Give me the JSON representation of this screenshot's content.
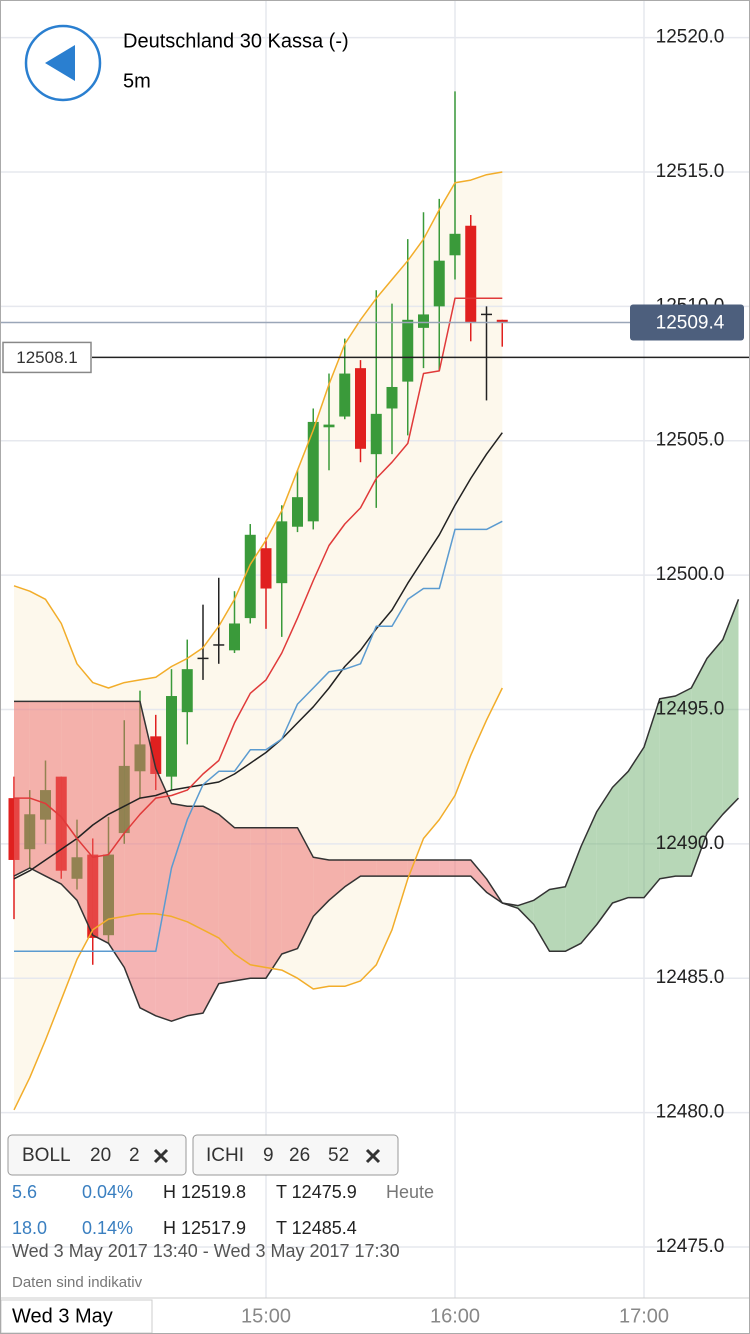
{
  "chart_data": {
    "type": "candlestick",
    "title": "Deutschland 30 Kassa (-)",
    "subtitle": "5m",
    "x": [
      "13:40",
      "13:45",
      "13:50",
      "13:55",
      "14:00",
      "14:05",
      "14:10",
      "14:15",
      "14:20",
      "14:25",
      "14:30",
      "14:35",
      "14:40",
      "14:45",
      "14:50",
      "14:55",
      "15:00",
      "15:05",
      "15:10",
      "15:15",
      "15:20",
      "15:25",
      "15:30",
      "15:35",
      "15:40",
      "15:45",
      "15:50",
      "15:55",
      "16:00",
      "16:05",
      "16:10",
      "16:15",
      "16:20",
      "16:25",
      "16:30",
      "16:35",
      "16:40",
      "16:45",
      "16:50",
      "16:55",
      "17:00",
      "17:05",
      "17:10",
      "17:15",
      "17:20",
      "17:25",
      "17:30"
    ],
    "open": [
      12491.7,
      12489.8,
      12490.9,
      12492.5,
      12488.7,
      12489.6,
      12486.6,
      12490.4,
      12492.7,
      12494.0,
      12492.5,
      12494.9,
      12496.9,
      12497.4,
      12497.2,
      12498.4,
      12501.0,
      12499.7,
      12501.8,
      12502.0,
      12505.5,
      12505.9,
      12507.7,
      12504.5,
      12506.2,
      12507.2,
      12509.2,
      12510.0,
      12511.9,
      12513.0,
      12509.7,
      12509.5,
      null,
      null,
      null,
      null,
      null,
      null,
      null,
      null,
      null,
      null,
      null,
      null,
      null,
      null,
      null
    ],
    "high": [
      12492.5,
      12492.0,
      12493.1,
      12492.5,
      12490.9,
      12490.2,
      12491.0,
      12494.6,
      12495.7,
      12494.8,
      12496.5,
      12497.6,
      12498.9,
      12499.9,
      12499.4,
      12501.9,
      12501.4,
      12502.6,
      12503.9,
      12506.2,
      12507.5,
      12508.8,
      12508.0,
      12510.6,
      12510.1,
      12512.5,
      12513.5,
      12514.0,
      12518.0,
      12513.4,
      12510.0,
      12509.5,
      null,
      null,
      null,
      null,
      null,
      null,
      null,
      null,
      null,
      null,
      null,
      null,
      null,
      null,
      null
    ],
    "low": [
      12487.2,
      12489.1,
      12490.0,
      12488.7,
      12488.3,
      12485.5,
      12486.3,
      12490.0,
      12491.7,
      12492.0,
      12492.0,
      12493.7,
      12496.1,
      12496.7,
      12497.1,
      12498.2,
      12498.0,
      12497.7,
      12501.6,
      12501.7,
      12503.9,
      12505.8,
      12504.2,
      12502.5,
      12504.5,
      12505.2,
      12507.7,
      12507.6,
      12511.0,
      12508.7,
      12506.5,
      12508.5,
      null,
      null,
      null,
      null,
      null,
      null,
      null,
      null,
      null,
      null,
      null,
      null,
      null,
      null,
      null
    ],
    "close": [
      12489.4,
      12491.1,
      12492.0,
      12489.0,
      12489.5,
      12486.5,
      12489.6,
      12492.9,
      12493.7,
      12492.6,
      12495.5,
      12496.5,
      12496.9,
      12497.4,
      12498.2,
      12501.5,
      12499.5,
      12502.0,
      12502.9,
      12505.7,
      12505.6,
      12507.5,
      12504.7,
      12506.0,
      12507.0,
      12509.5,
      12509.7,
      12511.7,
      12512.7,
      12509.4,
      12509.7,
      12509.4,
      null,
      null,
      null,
      null,
      null,
      null,
      null,
      null,
      null,
      null,
      null,
      null,
      null,
      null,
      null
    ],
    "up_color": "#3a9a3a",
    "down_color": "#e0201f",
    "flat_color": "#222222",
    "bands": {
      "color": "#f2ad2a",
      "fill": "#fdf8ec",
      "upper": [
        12499.6,
        12499.4,
        12499.1,
        12498.2,
        12496.7,
        12496.0,
        12495.8,
        12496.0,
        12496.1,
        12496.2,
        12496.6,
        12496.9,
        12497.3,
        12498.1,
        12499.1,
        12500.4,
        12501.3,
        12502.4,
        12503.9,
        12505.4,
        12507.1,
        12508.6,
        12509.5,
        12510.3,
        12511.0,
        12511.7,
        12512.5,
        12513.6,
        12514.6,
        12514.7,
        12514.9,
        12515.0,
        null,
        null,
        null,
        null,
        null,
        null,
        null,
        null,
        null,
        null,
        null,
        null,
        null,
        null,
        null
      ],
      "lower": [
        12480.1,
        12481.3,
        12482.7,
        12484.2,
        12485.7,
        12486.8,
        12487.2,
        12487.3,
        12487.4,
        12487.4,
        12487.3,
        12487.1,
        12486.8,
        12486.5,
        12485.9,
        12485.5,
        12485.4,
        12485.3,
        12485.0,
        12484.6,
        12484.7,
        12484.7,
        12484.9,
        12485.5,
        12486.8,
        12488.7,
        12490.2,
        12490.9,
        12491.8,
        12493.3,
        12494.6,
        12495.8,
        null,
        null,
        null,
        null,
        null,
        null,
        null,
        null,
        null,
        null,
        null,
        null,
        null,
        null,
        null
      ]
    },
    "lines": [
      {
        "color": "#222222",
        "values": [
          12488.7,
          12489.0,
          12489.4,
          12489.8,
          12490.2,
          12490.7,
          12491.1,
          12491.4,
          12491.7,
          12491.8,
          12492.0,
          12492.1,
          12492.2,
          12492.3,
          12492.6,
          12493.0,
          12493.4,
          12493.9,
          12494.5,
          12495.1,
          12495.8,
          12496.6,
          12497.2,
          12498.0,
          12498.7,
          12499.7,
          12500.6,
          12501.5,
          12502.6,
          12503.6,
          12504.5,
          12505.3,
          null,
          null,
          null,
          null,
          null,
          null,
          null,
          null,
          null,
          null,
          null,
          null,
          null,
          null,
          null
        ]
      },
      {
        "color": "#e03a3a",
        "values": [
          12491.7,
          12491.7,
          12491.5,
          12491.0,
          12490.2,
          12489.5,
          12489.6,
          12490.4,
          12491.1,
          12491.7,
          12491.8,
          12492.0,
          12492.6,
          12493.1,
          12494.5,
          12495.6,
          12496.1,
          12497.1,
          12498.4,
          12499.8,
          12501.1,
          12501.9,
          12502.5,
          12503.6,
          12504.2,
          12504.9,
          12507.5,
          12507.6,
          12510.3,
          12510.3,
          12510.3,
          12510.3,
          null,
          null,
          null,
          null,
          null,
          null,
          null,
          null,
          null,
          null,
          null,
          null,
          null,
          null,
          null
        ]
      },
      {
        "color": "#5b9bd0",
        "values": [
          12486.0,
          12486.0,
          12486.0,
          12486.0,
          12486.0,
          12486.0,
          12486.0,
          12486.0,
          12486.0,
          12486.0,
          12489.1,
          12490.9,
          12492.2,
          12492.7,
          12492.7,
          12493.5,
          12493.5,
          12493.9,
          12495.2,
          12495.8,
          12496.4,
          12496.5,
          12496.7,
          12498.1,
          12498.1,
          12499.1,
          12499.5,
          12499.5,
          12501.7,
          12501.7,
          12501.7,
          12502.0,
          null,
          null,
          null,
          null,
          null,
          null,
          null,
          null,
          null,
          null,
          null,
          null,
          null,
          null,
          null
        ]
      }
    ],
    "cloud": {
      "up_color": "#6fb06f",
      "down_color": "#ec6a6a",
      "line_color": "#333333",
      "spanA": [
        12488.8,
        12489.1,
        12488.8,
        12488.5,
        12487.9,
        12486.6,
        12486.3,
        12485.4,
        12483.9,
        12483.6,
        12483.4,
        12483.6,
        12483.7,
        12484.8,
        12484.9,
        12485.0,
        12485.0,
        12485.9,
        12486.1,
        12487.3,
        12487.9,
        12488.4,
        12488.8,
        12488.8,
        12488.8,
        12488.8,
        12488.8,
        12488.8,
        12488.8,
        12488.8,
        12488.2,
        12487.8,
        12487.7,
        12487.9,
        12488.3,
        12488.4,
        12489.9,
        12491.2,
        12492.1,
        12492.7,
        12493.6,
        12495.4,
        12495.5,
        12495.8,
        12496.9,
        12497.6,
        12499.1
      ],
      "spanB": [
        12495.3,
        12495.3,
        12495.3,
        12495.3,
        12495.3,
        12495.3,
        12495.3,
        12495.3,
        12495.3,
        12492.8,
        12491.5,
        12491.4,
        12491.4,
        12491.1,
        12490.6,
        12490.6,
        12490.6,
        12490.6,
        12490.6,
        12489.5,
        12489.4,
        12489.4,
        12489.4,
        12489.4,
        12489.4,
        12489.4,
        12489.4,
        12489.4,
        12489.4,
        12489.4,
        12488.7,
        12487.8,
        12487.6,
        12487.0,
        12486.0,
        12486.0,
        12486.3,
        12487.0,
        12487.8,
        12488.0,
        12488.0,
        12488.7,
        12488.8,
        12488.8,
        12490.4,
        12491.1,
        12491.7
      ]
    },
    "last_price": 12509.4,
    "last_price_color": "#4d5f7d",
    "crosshair": 12508.1,
    "ylim": [
      12473.1,
      12521.4
    ],
    "yticks": [
      {
        "value": 12520,
        "label": "12520.0"
      },
      {
        "value": 12515,
        "label": "12515.0"
      },
      {
        "value": 12510,
        "label": "12510.0"
      },
      {
        "value": 12505,
        "label": "12505.0"
      },
      {
        "value": 12500,
        "label": "12500.0"
      },
      {
        "value": 12495,
        "label": "12495.0"
      },
      {
        "value": 12490,
        "label": "12490.0"
      },
      {
        "value": 12485,
        "label": "12485.0"
      },
      {
        "value": 12480,
        "label": "12480.0"
      },
      {
        "value": 12475,
        "label": "12475.0"
      }
    ],
    "xticks": [
      "15:00",
      "16:00",
      "17:00"
    ],
    "grid": true
  },
  "indicators": [
    {
      "name": "BOLL",
      "params": [
        20,
        2
      ]
    },
    {
      "name": "ICHI",
      "params": [
        9,
        26,
        52
      ]
    }
  ],
  "stats": [
    [
      "5.6",
      "0.04%",
      "H 12519.8",
      "T 12475.9",
      "Heute"
    ],
    [
      "18.0",
      "0.14%",
      "H 12517.9",
      "T 12485.4"
    ]
  ],
  "range": "Wed 3 May 2017 13:40 - Wed 3 May 2017 17:30",
  "note": "Daten sind indikativ",
  "date_label": "Wed 3 May"
}
